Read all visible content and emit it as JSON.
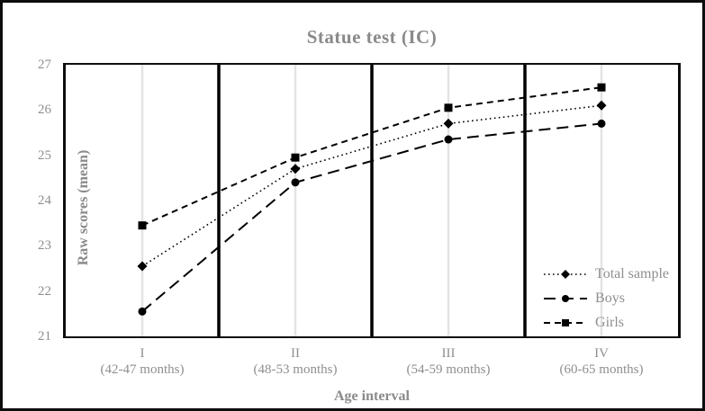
{
  "chart_data": {
    "type": "line",
    "title": "Statue test (IC)",
    "xlabel": "Age interval",
    "ylabel": "Raw scores (mean)",
    "ylim": [
      21,
      27
    ],
    "yticks": [
      27,
      26,
      25,
      24,
      23,
      22,
      21
    ],
    "grid": "light vertical gridline at each category center; bold black vertical separators between categories; no horizontal gridlines",
    "legend_position": "inside bottom-right, no border",
    "categories": [
      {
        "label": "I",
        "sublabel": "(42-47 months)"
      },
      {
        "label": "II",
        "sublabel": "(48-53 months)"
      },
      {
        "label": "III",
        "sublabel": "(54-59 months)"
      },
      {
        "label": "IV",
        "sublabel": "(60-65 months)"
      }
    ],
    "series": [
      {
        "name": "Total sample",
        "marker": "diamond",
        "line": "dotted",
        "values": [
          22.55,
          24.7,
          25.7,
          26.1
        ]
      },
      {
        "name": "Boys",
        "marker": "circle",
        "line": "long-dash",
        "values": [
          21.55,
          24.4,
          25.35,
          25.7
        ]
      },
      {
        "name": "Girls",
        "marker": "square",
        "line": "dash",
        "values": [
          23.45,
          24.95,
          26.05,
          26.5
        ]
      }
    ],
    "colors": {
      "series_line": "#000000",
      "marker_fill": "#000000",
      "text": "#8a8a8a",
      "gridline": "#e3e3e3",
      "separator": "#000000",
      "frame": "#0d0d0d",
      "background": "#ffffff"
    }
  }
}
